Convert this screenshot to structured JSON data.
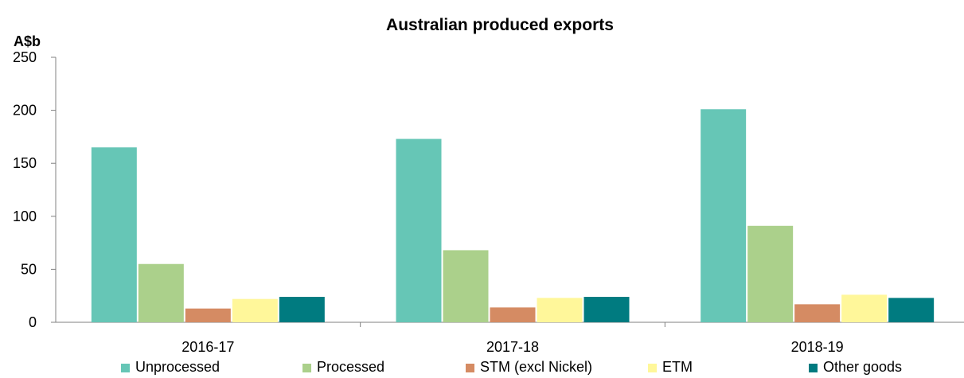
{
  "chart_data": {
    "type": "bar",
    "title": "Australian produced exports",
    "ylabel": "A$b",
    "xlabel": "",
    "ylim": [
      0,
      250
    ],
    "yticks": [
      0,
      50,
      100,
      150,
      200,
      250
    ],
    "categories": [
      "2016-17",
      "2017-18",
      "2018-19"
    ],
    "series": [
      {
        "name": "Unprocessed",
        "color": "#66c6b6",
        "values": [
          165,
          173,
          201
        ]
      },
      {
        "name": "Processed",
        "color": "#abd08b",
        "values": [
          55,
          68,
          91
        ]
      },
      {
        "name": "STM (excl Nickel)",
        "color": "#d58b63",
        "values": [
          13,
          14,
          17
        ]
      },
      {
        "name": "ETM",
        "color": "#fff79a",
        "values": [
          22,
          23,
          26
        ]
      },
      {
        "name": "Other goods",
        "color": "#007b80",
        "values": [
          24,
          24,
          23
        ]
      }
    ],
    "legend_position": "bottom",
    "grid": false
  }
}
